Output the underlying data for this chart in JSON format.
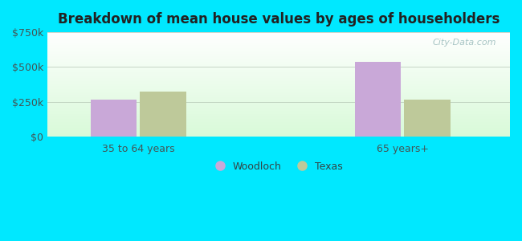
{
  "title": "Breakdown of mean house values by ages of householders",
  "categories": [
    "35 to 64 years",
    "65 years+"
  ],
  "woodloch_values": [
    265000,
    535000
  ],
  "texas_values": [
    325000,
    268000
  ],
  "woodloch_color": "#c9a8d8",
  "texas_color": "#bec99a",
  "ylim": [
    0,
    750000
  ],
  "yticks": [
    0,
    250000,
    500000,
    750000
  ],
  "ytick_labels": [
    "$0",
    "$250k",
    "$500k",
    "$750k"
  ],
  "legend_labels": [
    "Woodloch",
    "Texas"
  ],
  "background_outer": "#00e8ff",
  "bar_width": 0.28,
  "group_positions": [
    1.0,
    2.6
  ],
  "watermark": "City-Data.com",
  "xlim": [
    0.45,
    3.25
  ]
}
